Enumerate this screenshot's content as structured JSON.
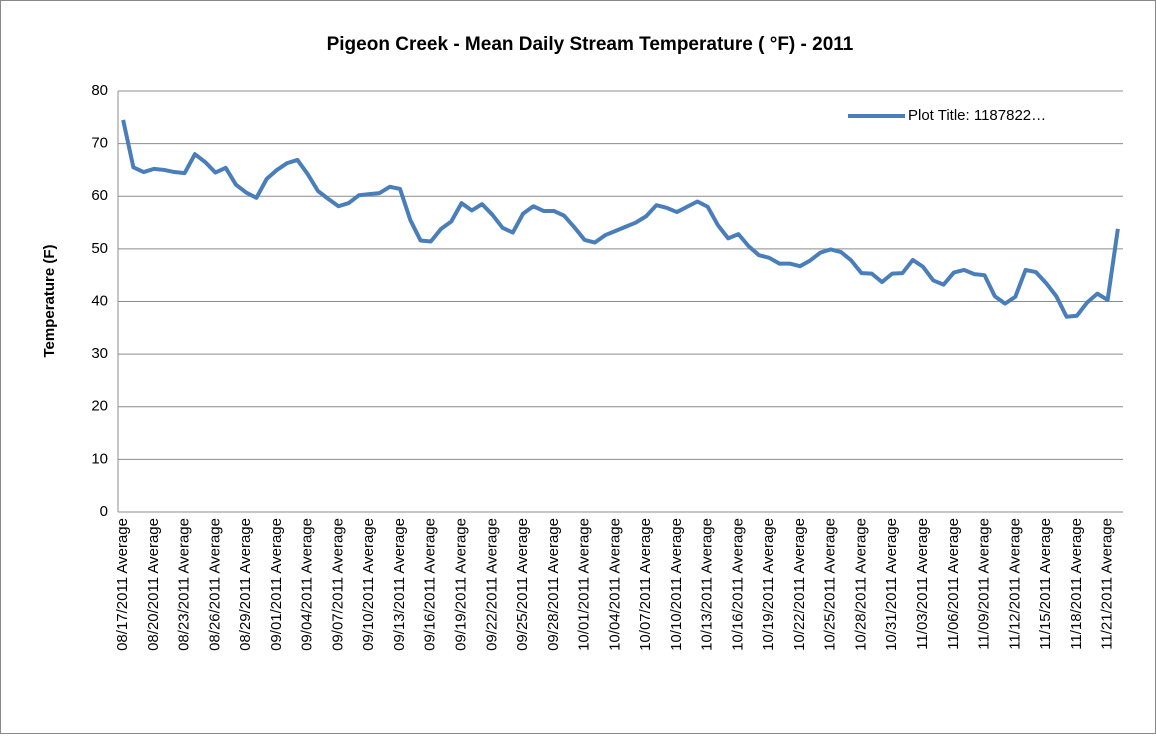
{
  "chart_data": {
    "type": "line",
    "title": "Pigeon Creek - Mean Daily Stream Temperature ( °F) - 2011",
    "y_label": "Temperature (F)",
    "categories": [
      "08/17/2011 Average",
      null,
      null,
      "08/20/2011 Average",
      null,
      null,
      "08/23/2011 Average",
      null,
      null,
      "08/26/2011 Average",
      null,
      null,
      "08/29/2011 Average",
      null,
      null,
      "09/01/2011 Average",
      null,
      null,
      "09/04/2011 Average",
      null,
      null,
      "09/07/2011 Average",
      null,
      null,
      "09/10/2011 Average",
      null,
      null,
      "09/13/2011 Average",
      null,
      null,
      "09/16/2011 Average",
      null,
      null,
      "09/19/2011 Average",
      null,
      null,
      "09/22/2011 Average",
      null,
      null,
      "09/25/2011 Average",
      null,
      null,
      "09/28/2011 Average",
      null,
      null,
      "10/01/2011 Average",
      null,
      null,
      "10/04/2011 Average",
      null,
      null,
      "10/07/2011 Average",
      null,
      null,
      "10/10/2011 Average",
      null,
      null,
      "10/13/2011 Average",
      null,
      null,
      "10/16/2011 Average",
      null,
      null,
      "10/19/2011 Average",
      null,
      null,
      "10/22/2011 Average",
      null,
      null,
      "10/25/2011 Average",
      null,
      null,
      "10/28/2011 Average",
      null,
      null,
      "10/31/2011 Average",
      null,
      null,
      "11/03/2011 Average",
      null,
      null,
      "11/06/2011 Average",
      null,
      null,
      "11/09/2011 Average",
      null,
      null,
      "11/12/2011 Average",
      null,
      null,
      "11/15/2011 Average",
      null,
      null,
      "11/18/2011 Average",
      null,
      null,
      "11/21/2011 Average",
      null
    ],
    "series": [
      {
        "name": "Plot Title: 1187822…",
        "color": "#4a7ebb",
        "values": [
          74.5,
          65.5,
          64.6,
          65.2,
          65.0,
          64.6,
          64.4,
          68.0,
          66.5,
          64.5,
          65.4,
          62.2,
          60.7,
          59.7,
          63.3,
          65.0,
          66.3,
          66.9,
          64.2,
          61.0,
          59.5,
          58.1,
          58.7,
          60.2,
          60.4,
          60.6,
          61.8,
          61.4,
          55.5,
          51.6,
          51.4,
          53.8,
          55.2,
          58.7,
          57.3,
          58.5,
          56.5,
          54.0,
          53.1,
          56.7,
          58.1,
          57.2,
          57.2,
          56.3,
          54.1,
          51.7,
          51.2,
          52.6,
          53.4,
          54.2,
          55.0,
          56.2,
          58.3,
          57.8,
          57.0,
          58.0,
          59.0,
          58.0,
          54.5,
          52.0,
          52.8,
          50.5,
          48.8,
          48.3,
          47.2,
          47.2,
          46.7,
          47.8,
          49.3,
          49.9,
          49.4,
          47.8,
          45.4,
          45.3,
          43.7,
          45.3,
          45.4,
          47.9,
          46.6,
          44.0,
          43.2,
          45.5,
          46.0,
          45.2,
          45.0,
          41.0,
          39.6,
          40.9,
          46.0,
          45.6,
          43.5,
          41.0,
          37.1,
          37.3,
          39.8,
          41.5,
          40.3,
          53.8
        ]
      }
    ],
    "ylim": [
      0,
      80
    ],
    "yticks": [
      0,
      10,
      20,
      30,
      40,
      50,
      60,
      70,
      80
    ],
    "grid": true,
    "legend": "top-right"
  }
}
